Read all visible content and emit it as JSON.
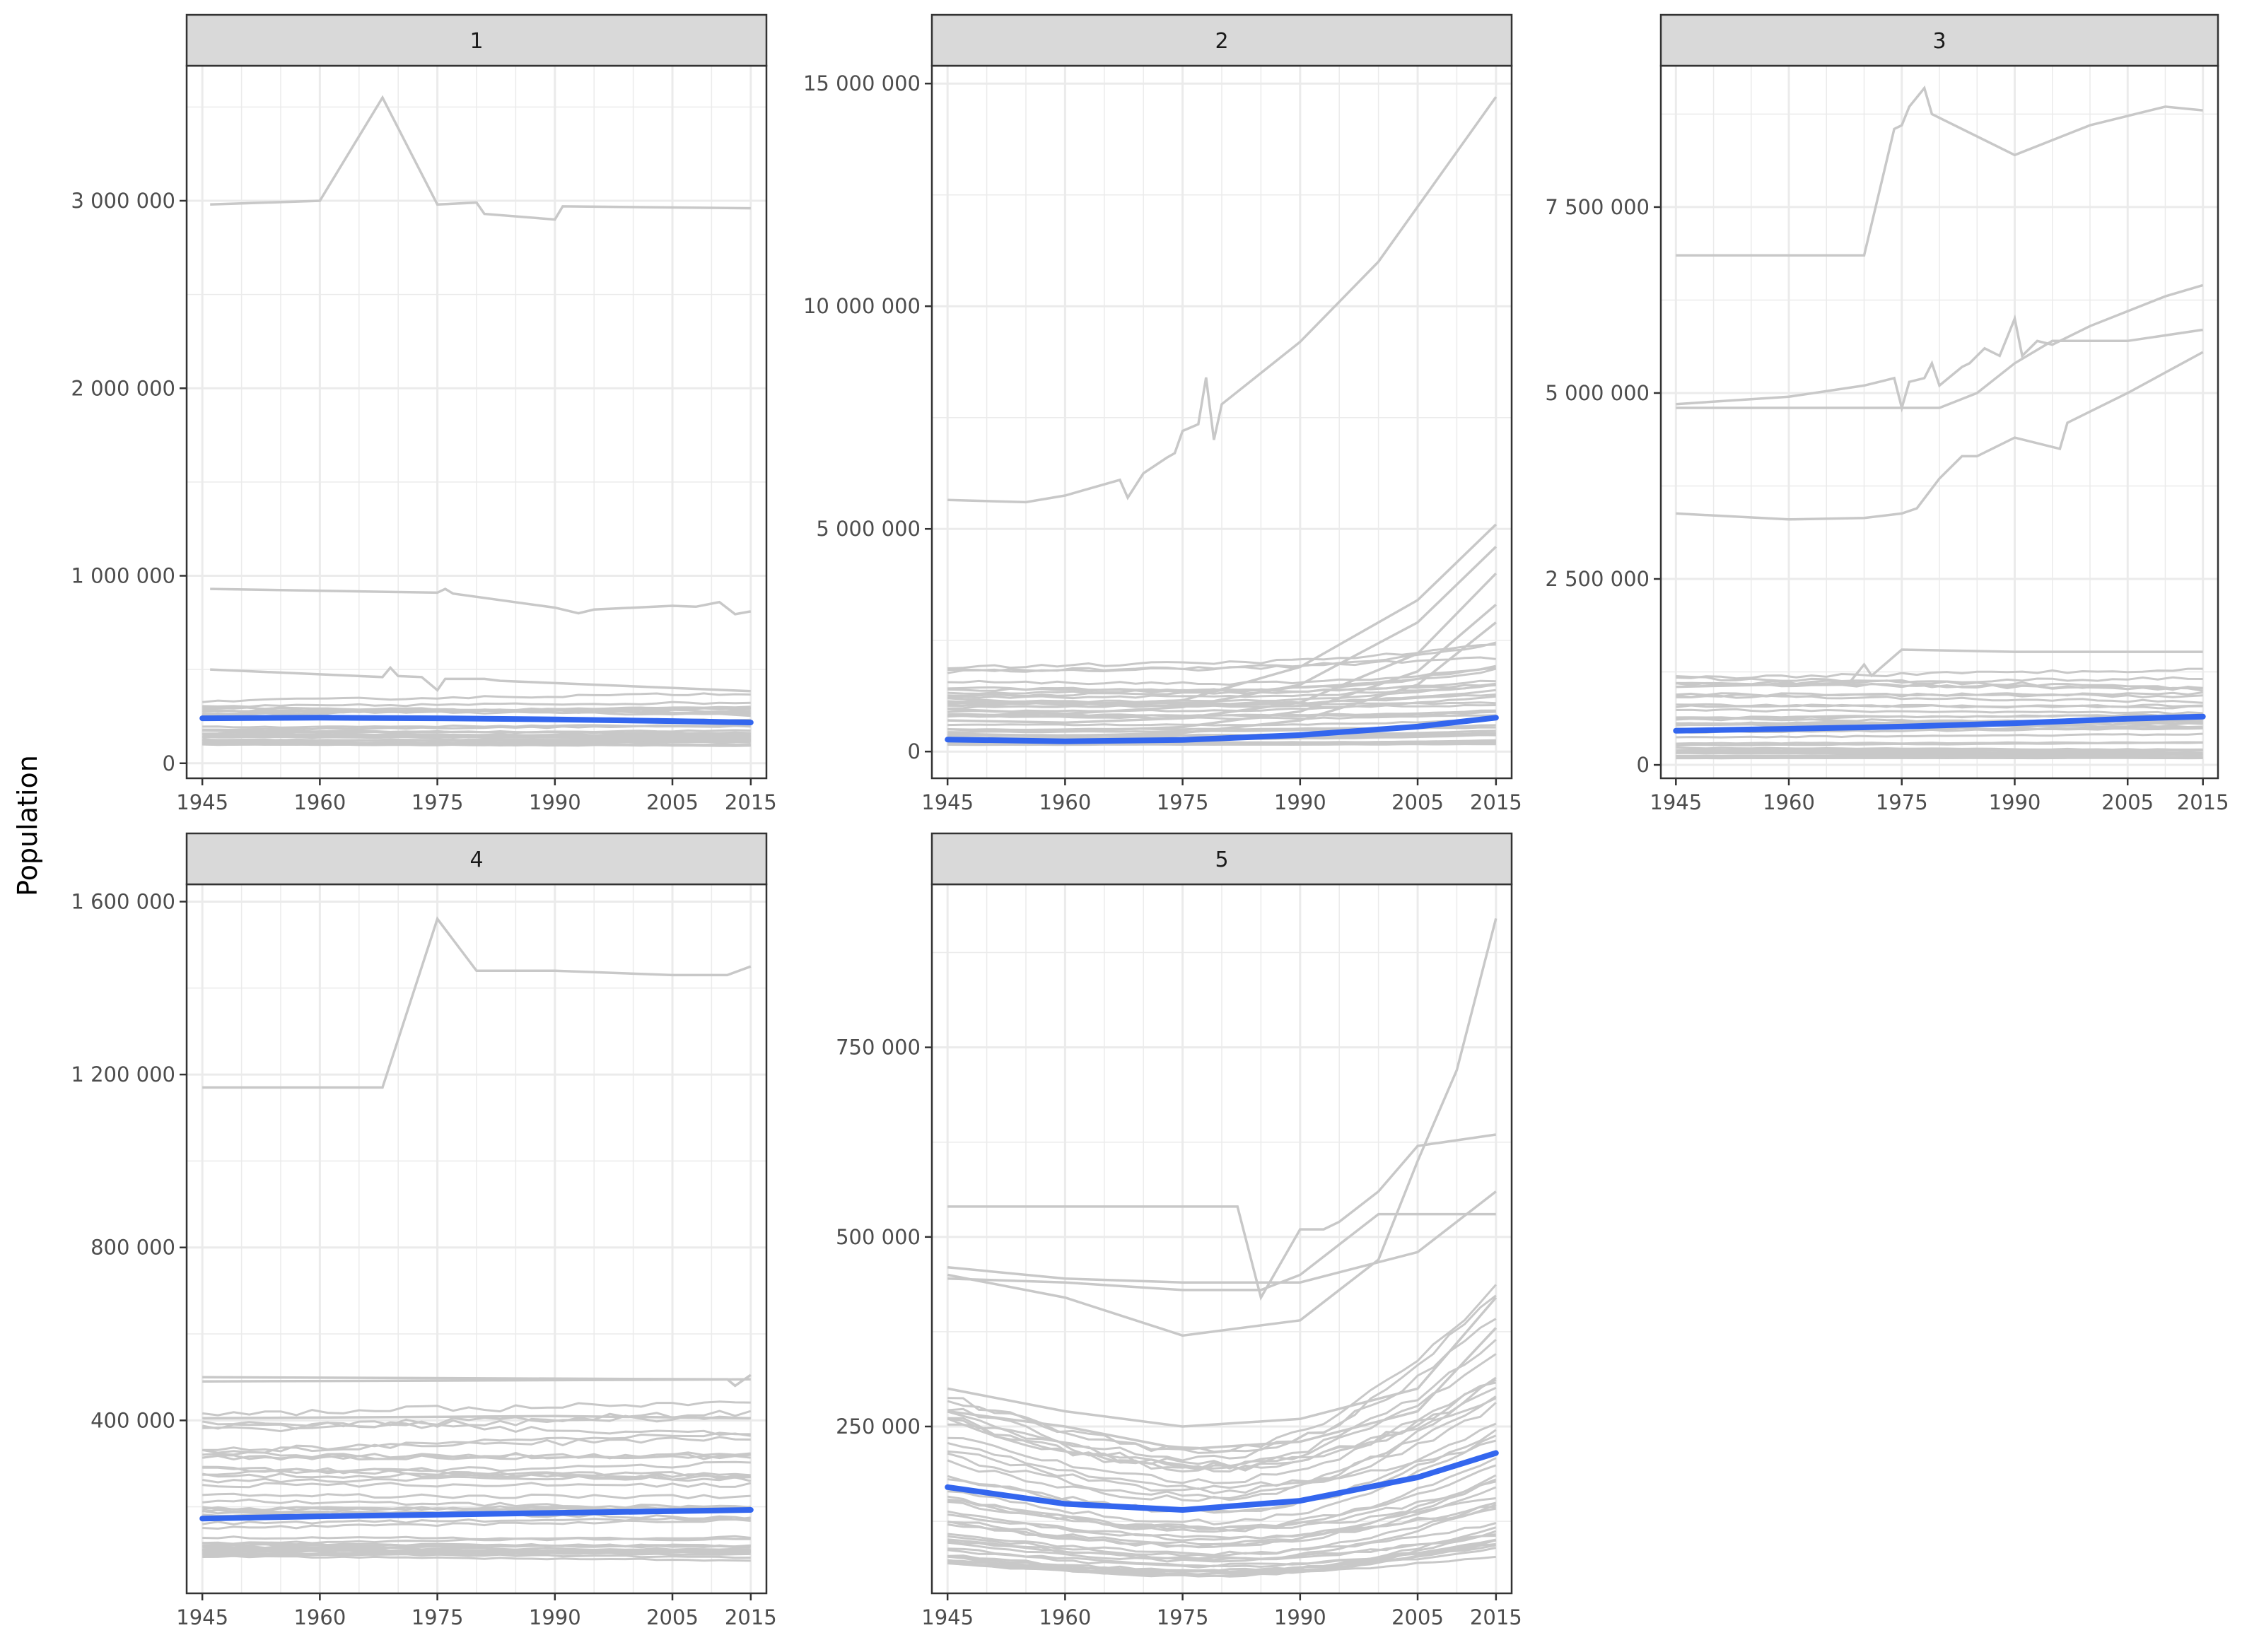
{
  "chart_data": {
    "type": "line",
    "ylabel": "Population",
    "colors": {
      "background_lines": "#c8c8c8",
      "trend": "#3366ee",
      "strip": "#d9d9d9",
      "grid": "#ebebeb"
    },
    "x_ticks": [
      1945,
      1960,
      1975,
      1990,
      2005,
      2015
    ],
    "facets": [
      {
        "label": "1",
        "xlim": [
          1943,
          2017
        ],
        "ylim": [
          -80000,
          3720000
        ],
        "y_ticks": [
          0,
          1000000,
          2000000,
          3000000
        ],
        "y_tick_labels": [
          "0",
          "1 000 000",
          "2 000 000",
          "3 000 000"
        ],
        "highlight_series": [
          {
            "x": [
              1946,
              1960,
              1968,
              1975,
              1980,
              1981,
              1990,
              1991,
              2015
            ],
            "y": [
              2980000,
              3000000,
              3550000,
              2980000,
              2990000,
              2930000,
              2900000,
              2970000,
              2960000
            ]
          },
          {
            "x": [
              1946,
              1975,
              1976,
              1977,
              1990,
              1993,
              1995,
              2005,
              2008,
              2011,
              2013,
              2015
            ],
            "y": [
              930000,
              910000,
              930000,
              905000,
              830000,
              800000,
              820000,
              840000,
              835000,
              860000,
              795000,
              810000
            ]
          },
          {
            "x": [
              1946,
              1968,
              1969,
              1970,
              1973,
              1975,
              1976,
              1981,
              1983,
              2015
            ],
            "y": [
              500000,
              460000,
              510000,
              465000,
              460000,
              390000,
              450000,
              450000,
              440000,
              385000
            ]
          }
        ],
        "background_series_count": 32,
        "background_range": [
          100000,
          360000
        ],
        "trend": {
          "x": [
            1945,
            1960,
            1975,
            1990,
            2005,
            2015
          ],
          "y": [
            240000,
            243000,
            240000,
            234000,
            225000,
            218000
          ]
        }
      },
      {
        "label": "2",
        "xlim": [
          1943,
          2017
        ],
        "ylim": [
          -600000,
          15400000
        ],
        "y_ticks": [
          0,
          5000000,
          10000000,
          15000000
        ],
        "y_tick_labels": [
          "0",
          "5 000 000",
          "10 000 000",
          "15 000 000"
        ],
        "highlight_series": [
          {
            "x": [
              1945,
              1955,
              1960,
              1967,
              1968,
              1970,
              1973,
              1974,
              1975,
              1977,
              1978,
              1979,
              1980,
              1990,
              2000,
              2015
            ],
            "y": [
              5650000,
              5600000,
              5750000,
              6100000,
              5700000,
              6250000,
              6600000,
              6700000,
              7200000,
              7350000,
              8400000,
              7000000,
              7800000,
              9200000,
              11000000,
              14700000
            ]
          },
          {
            "x": [
              1945,
              1960,
              1975,
              1990,
              2005,
              2015
            ],
            "y": [
              1200000,
              1050000,
              1150000,
              1900000,
              3400000,
              5100000
            ]
          },
          {
            "x": [
              1945,
              1960,
              1975,
              1990,
              2005,
              2015
            ],
            "y": [
              950000,
              850000,
              1000000,
              1500000,
              2900000,
              4600000
            ]
          },
          {
            "x": [
              1945,
              1960,
              1975,
              1990,
              2005,
              2015
            ],
            "y": [
              700000,
              650000,
              750000,
              1100000,
              2200000,
              4000000
            ]
          },
          {
            "x": [
              1945,
              1960,
              1975,
              1990,
              2005,
              2015
            ],
            "y": [
              500000,
              450000,
              550000,
              900000,
              1800000,
              3300000
            ]
          },
          {
            "x": [
              1945,
              1960,
              1975,
              1990,
              2005,
              2015
            ],
            "y": [
              400000,
              350000,
              420000,
              700000,
              1500000,
              2900000
            ]
          }
        ],
        "background_series_count": 32,
        "background_range": [
          150000,
          1900000
        ],
        "trend": {
          "x": [
            1945,
            1960,
            1975,
            1990,
            2005,
            2015
          ],
          "y": [
            270000,
            230000,
            260000,
            370000,
            560000,
            760000
          ]
        }
      },
      {
        "label": "3",
        "xlim": [
          1943,
          2017
        ],
        "ylim": [
          -180000,
          9400000
        ],
        "y_ticks": [
          0,
          2500000,
          5000000,
          7500000
        ],
        "y_tick_labels": [
          "0",
          "2 500 000",
          "5 000 000",
          "7 500 000"
        ],
        "highlight_series": [
          {
            "x": [
              1945,
              1970,
              1972,
              1974,
              1975,
              1976,
              1978,
              1979,
              1980,
              1990,
              2000,
              2010,
              2015
            ],
            "y": [
              6850000,
              6850000,
              7700000,
              8550000,
              8600000,
              8850000,
              9100000,
              8750000,
              8700000,
              8200000,
              8600000,
              8850000,
              8800000
            ]
          },
          {
            "x": [
              1945,
              1960,
              1970,
              1974,
              1975,
              1976,
              1978,
              1979,
              1980,
              1983,
              1984,
              1986,
              1988,
              1990,
              1991,
              1993,
              1995,
              2000,
              2005,
              2010,
              2015
            ],
            "y": [
              4850000,
              4950000,
              5100000,
              5200000,
              4800000,
              5150000,
              5200000,
              5400000,
              5100000,
              5350000,
              5400000,
              5600000,
              5500000,
              6000000,
              5500000,
              5700000,
              5650000,
              5900000,
              6100000,
              6300000,
              6450000
            ]
          },
          {
            "x": [
              1945,
              1980,
              1985,
              1990,
              1995,
              2005,
              2015
            ],
            "y": [
              4800000,
              4800000,
              5000000,
              5400000,
              5700000,
              5700000,
              5850000
            ]
          },
          {
            "x": [
              1945,
              1960,
              1970,
              1975,
              1977,
              1980,
              1983,
              1985,
              1990,
              1996,
              1997,
              2005,
              2015
            ],
            "y": [
              3380000,
              3300000,
              3320000,
              3380000,
              3450000,
              3850000,
              4150000,
              4150000,
              4400000,
              4250000,
              4600000,
              5000000,
              5550000
            ]
          },
          {
            "x": [
              1945,
              1968,
              1970,
              1971,
              1975,
              1990,
              2015
            ],
            "y": [
              1050000,
              1100000,
              1350000,
              1200000,
              1550000,
              1520000,
              1520000
            ]
          }
        ],
        "background_series_count": 34,
        "background_range": [
          80000,
          1300000
        ],
        "trend": {
          "x": [
            1945,
            1960,
            1975,
            1990,
            2005,
            2015
          ],
          "y": [
            460000,
            485000,
            515000,
            560000,
            620000,
            650000
          ]
        }
      },
      {
        "label": "4",
        "xlim": [
          1943,
          2017
        ],
        "ylim": [
          0,
          1640000
        ],
        "y_ticks": [
          400000,
          800000,
          1200000,
          1600000
        ],
        "y_tick_labels": [
          "400 000",
          "800 000",
          "1 200 000",
          "1 600 000"
        ],
        "highlight_series": [
          {
            "x": [
              1945,
              1968,
              1975,
              1980,
              1990,
              2005,
              2012,
              2015
            ],
            "y": [
              1170000,
              1170000,
              1560000,
              1440000,
              1440000,
              1430000,
              1430000,
              1450000
            ]
          },
          {
            "x": [
              1945,
              2012,
              2013,
              2015
            ],
            "y": [
              500000,
              495000,
              480000,
              505000
            ]
          },
          {
            "x": [
              1945,
              2015
            ],
            "y": [
              490000,
              495000
            ]
          },
          {
            "x": [
              1945,
              1990,
              2015
            ],
            "y": [
              405000,
              410000,
              405000
            ]
          }
        ],
        "background_series_count": 40,
        "background_range": [
          85000,
          440000
        ],
        "trend": {
          "x": [
            1945,
            1960,
            1975,
            1990,
            2005,
            2015
          ],
          "y": [
            173000,
            178000,
            182000,
            186000,
            190000,
            193000
          ]
        }
      },
      {
        "label": "5",
        "xlim": [
          1943,
          2017
        ],
        "ylim": [
          30000,
          965000
        ],
        "y_ticks": [
          250000,
          500000,
          750000
        ],
        "y_tick_labels": [
          "250 000",
          "500 000",
          "750 000"
        ],
        "highlight_series": [
          {
            "x": [
              1945,
              1960,
              1975,
              1990,
              2000,
              2005,
              2010,
              2015
            ],
            "y": [
              450000,
              420000,
              370000,
              390000,
              470000,
              600000,
              720000,
              920000
            ]
          },
          {
            "x": [
              1945,
              1982,
              1985,
              1990,
              1993,
              1995,
              2000,
              2005,
              2015
            ],
            "y": [
              540000,
              540000,
              420000,
              510000,
              510000,
              520000,
              560000,
              620000,
              635000
            ]
          },
          {
            "x": [
              1945,
              1960,
              1975,
              1990,
              2005,
              2015
            ],
            "y": [
              460000,
              445000,
              440000,
              440000,
              480000,
              560000
            ]
          },
          {
            "x": [
              1945,
              1960,
              1975,
              1985,
              1990,
              2000,
              2015
            ],
            "y": [
              445000,
              440000,
              430000,
              430000,
              450000,
              530000,
              530000
            ]
          },
          {
            "x": [
              1945,
              1960,
              1975,
              1990,
              2005,
              2015
            ],
            "y": [
              300000,
              270000,
              250000,
              260000,
              300000,
              420000
            ]
          },
          {
            "x": [
              1945,
              1960,
              1975,
              1990,
              2005,
              2015
            ],
            "y": [
              270000,
              250000,
              220000,
              230000,
              270000,
              380000
            ]
          }
        ],
        "background_series_count": 40,
        "background_range": [
          70000,
          290000
        ],
        "trend": {
          "x": [
            1945,
            1960,
            1975,
            1990,
            2005,
            2015
          ],
          "y": [
            170000,
            148000,
            140000,
            152000,
            183000,
            215000
          ]
        }
      }
    ]
  }
}
